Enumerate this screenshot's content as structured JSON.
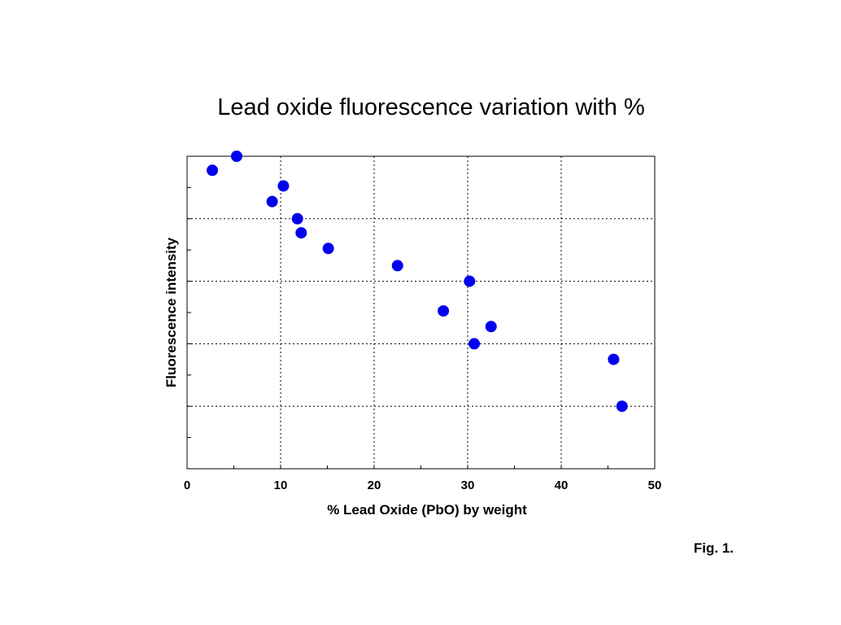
{
  "chart_data": {
    "type": "scatter",
    "title": "Lead oxide fluorescence variation with %",
    "xlabel": "% Lead Oxide (PbO) by weight",
    "ylabel": "Fluorescence intensity",
    "xlim": [
      0,
      50
    ],
    "x_ticks": [
      "0",
      "10",
      "20",
      "30",
      "40",
      "50"
    ],
    "ylim": [
      0,
      10
    ],
    "y_tick_labels_shown": false,
    "grid": true,
    "marker_color": "#0000ee",
    "points": [
      {
        "x": 2.7,
        "y": 9.55
      },
      {
        "x": 5.3,
        "y": 10.0
      },
      {
        "x": 9.1,
        "y": 8.55
      },
      {
        "x": 10.3,
        "y": 9.05
      },
      {
        "x": 11.8,
        "y": 8.0
      },
      {
        "x": 12.2,
        "y": 7.55
      },
      {
        "x": 15.1,
        "y": 7.05
      },
      {
        "x": 22.5,
        "y": 6.5
      },
      {
        "x": 27.4,
        "y": 5.05
      },
      {
        "x": 30.2,
        "y": 6.0
      },
      {
        "x": 30.7,
        "y": 4.0
      },
      {
        "x": 32.5,
        "y": 4.55
      },
      {
        "x": 45.6,
        "y": 3.5
      },
      {
        "x": 46.5,
        "y": 2.0
      }
    ]
  },
  "figure_label": "Fig. 1."
}
